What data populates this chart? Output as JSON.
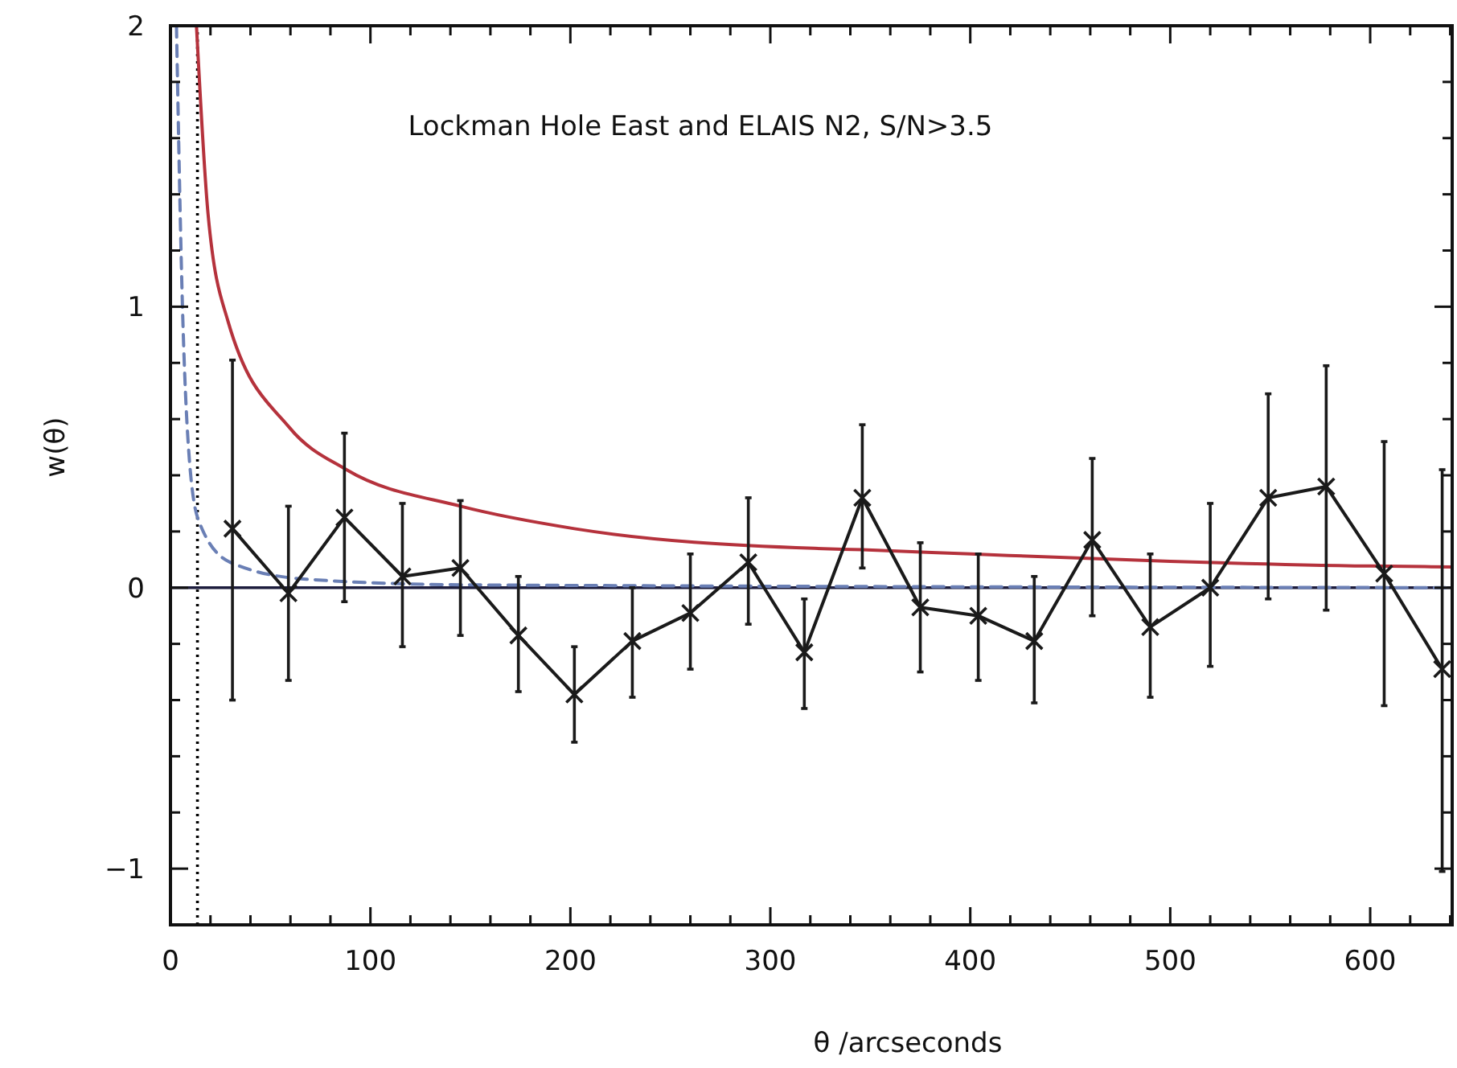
{
  "chart_data": {
    "type": "line",
    "title": "Lockman Hole East and ELAIS N2, S/N>3.5",
    "xlabel": "θ /arcseconds",
    "ylabel": "w(θ)",
    "xlim": [
      0,
      641
    ],
    "ylim": [
      -1.2,
      2
    ],
    "xticks": [
      0,
      {
        "value": 20,
        "label": null
      },
      {
        "value": 40,
        "label": null
      },
      {
        "value": 60,
        "label": null
      },
      {
        "value": 80,
        "label": null
      },
      100,
      {
        "value": 120,
        "label": null
      },
      {
        "value": 140,
        "label": null
      },
      {
        "value": 160,
        "label": null
      },
      {
        "value": 180,
        "label": null
      },
      200,
      {
        "value": 220,
        "label": null
      },
      {
        "value": 240,
        "label": null
      },
      {
        "value": 260,
        "label": null
      },
      {
        "value": 280,
        "label": null
      },
      300,
      {
        "value": 320,
        "label": null
      },
      {
        "value": 340,
        "label": null
      },
      {
        "value": 360,
        "label": null
      },
      {
        "value": 380,
        "label": null
      },
      400,
      {
        "value": 420,
        "label": null
      },
      {
        "value": 440,
        "label": null
      },
      {
        "value": 460,
        "label": null
      },
      {
        "value": 480,
        "label": null
      },
      500,
      {
        "value": 520,
        "label": null
      },
      {
        "value": 540,
        "label": null
      },
      {
        "value": 560,
        "label": null
      },
      {
        "value": 580,
        "label": null
      },
      600,
      {
        "value": 620,
        "label": null
      },
      {
        "value": 640,
        "label": null
      }
    ],
    "yticks": [
      {
        "value": -1.2,
        "label": null
      },
      {
        "value": -1,
        "label": "−1"
      },
      {
        "value": -0.8,
        "label": null
      },
      {
        "value": -0.6,
        "label": null
      },
      {
        "value": -0.4,
        "label": null
      },
      {
        "value": -0.2,
        "label": null
      },
      0,
      {
        "value": 0.2,
        "label": null
      },
      {
        "value": 0.4,
        "label": null
      },
      {
        "value": 0.6,
        "label": null
      },
      {
        "value": 0.8,
        "label": null
      },
      1,
      {
        "value": 1.2,
        "label": null
      },
      {
        "value": 1.4,
        "label": null
      },
      {
        "value": 1.6,
        "label": null
      },
      {
        "value": 1.8,
        "label": null
      },
      2
    ],
    "grid": false,
    "ref_lines": [
      {
        "axis": "y",
        "value": 0,
        "color": "#1c1c3c",
        "line_style": "solid"
      },
      {
        "axis": "x",
        "value": 13.5,
        "color": "#000000",
        "line_style": "dotted"
      }
    ],
    "series": [
      {
        "color": "#b5323c",
        "line_style": "solid",
        "marker": "none",
        "x": [
          13,
          18.8,
          28.7,
          59.5,
          88,
          145,
          202,
          322,
          346,
          400,
          500,
          600,
          641
        ],
        "values": [
          2,
          1.33,
          0.95,
          0.57,
          0.42,
          0.29,
          0.21,
          0.14,
          0.135,
          0.12,
          0.094,
          0.077,
          0.074
        ]
      },
      {
        "color": "#6a7fb5",
        "line_style": "dashed",
        "marker": "none",
        "x": [
          3,
          6,
          9,
          14,
          30,
          68,
          150,
          641
        ],
        "values": [
          2,
          1.0,
          0.5,
          0.24,
          0.09,
          0.03,
          0.01,
          0.0
        ]
      },
      {
        "color": "#1a1a1a",
        "line_style": "solid",
        "marker": "cross",
        "x": [
          31,
          59,
          87,
          116,
          145,
          174,
          202,
          231,
          260,
          289,
          317,
          346,
          375,
          404,
          432,
          461,
          490,
          520,
          549,
          578,
          607,
          636
        ],
        "values": [
          0.21,
          -0.02,
          0.25,
          0.04,
          0.07,
          -0.17,
          -0.38,
          -0.19,
          -0.09,
          0.09,
          -0.23,
          0.32,
          -0.07,
          -0.1,
          -0.19,
          0.17,
          -0.14,
          0.0,
          0.32,
          0.36,
          0.05,
          -0.29
        ],
        "errors": [
          [
            -0.4,
            0.81
          ],
          [
            -0.33,
            0.29
          ],
          [
            -0.05,
            0.55
          ],
          [
            -0.21,
            0.3
          ],
          [
            -0.17,
            0.31
          ],
          [
            -0.37,
            0.04
          ],
          [
            -0.55,
            -0.21
          ],
          [
            -0.39,
            0.0
          ],
          [
            -0.29,
            0.12
          ],
          [
            -0.13,
            0.32
          ],
          [
            -0.43,
            -0.04
          ],
          [
            0.07,
            0.58
          ],
          [
            -0.3,
            0.16
          ],
          [
            -0.33,
            0.12
          ],
          [
            -0.41,
            0.04
          ],
          [
            -0.1,
            0.46
          ],
          [
            -0.39,
            0.12
          ],
          [
            -0.28,
            0.3
          ],
          [
            -0.04,
            0.69
          ],
          [
            -0.08,
            0.79
          ],
          [
            -0.42,
            0.52
          ],
          [
            -1.01,
            0.42
          ]
        ]
      }
    ]
  }
}
